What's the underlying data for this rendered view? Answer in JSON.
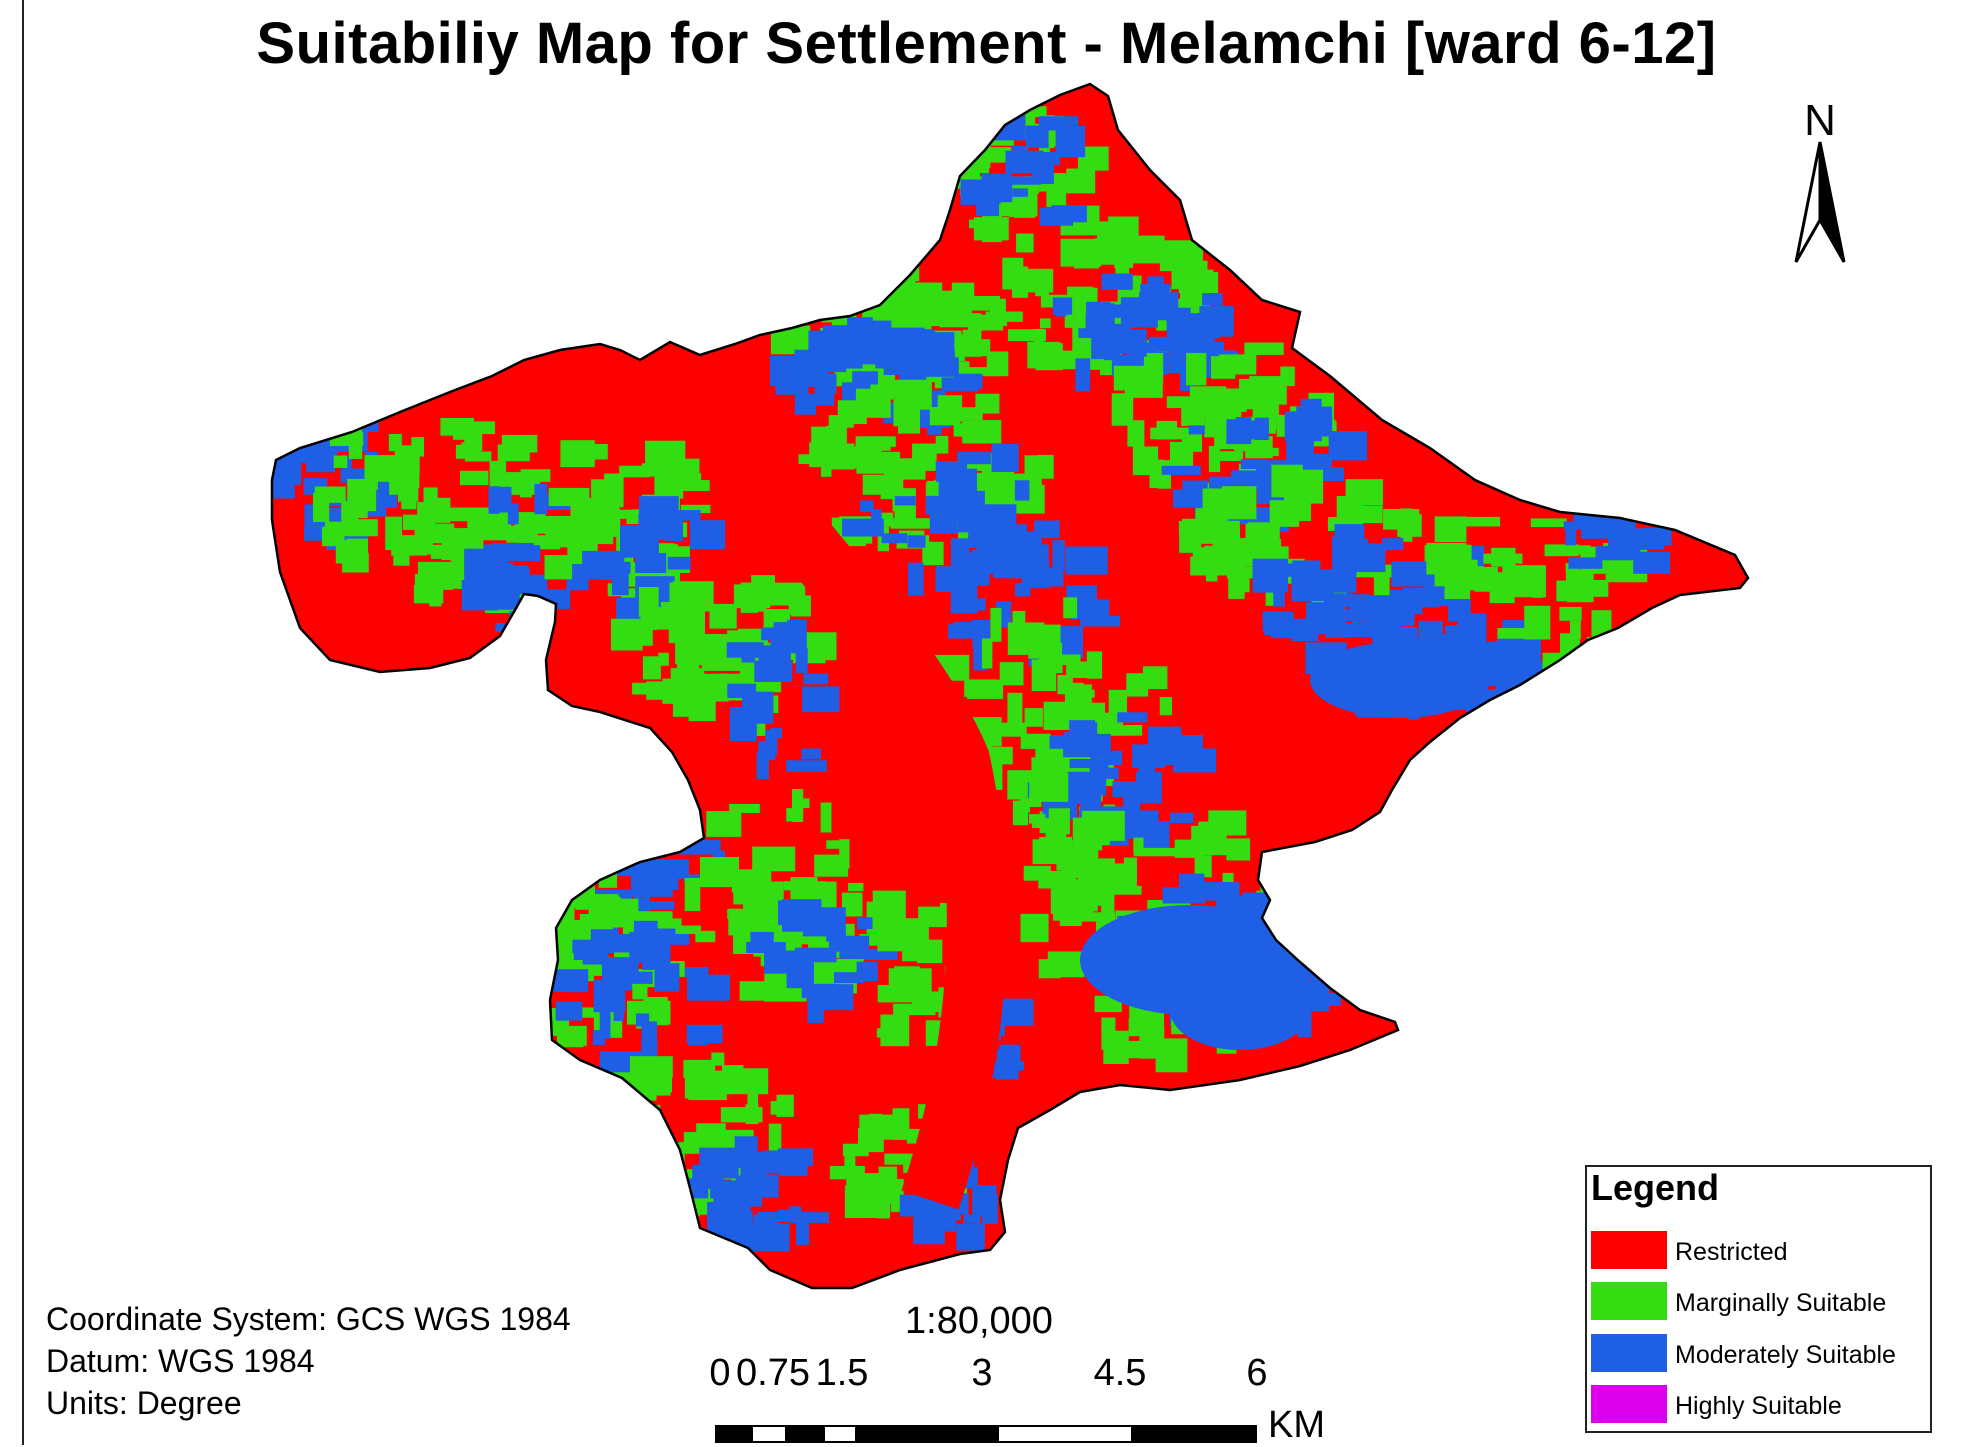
{
  "title": "Suitabiliy Map for Settlement - Melamchi [ward 6-12]",
  "north_arrow": {
    "letter": "N",
    "icon": "north-arrow-icon"
  },
  "classes": [
    {
      "label": "Restricted",
      "color": "#ff0000"
    },
    {
      "label": "Marginally Suitable",
      "color": "#33dd11"
    },
    {
      "label": "Moderately Suitable",
      "color": "#1e5fe6"
    },
    {
      "label": "Highly Suitable",
      "color": "#dd00ee"
    }
  ],
  "legend": {
    "title": "Legend"
  },
  "metadata": {
    "coordinate_system": "Coordinate System: GCS WGS 1984",
    "datum": "Datum: WGS 1984",
    "units": "Units: Degree"
  },
  "scale": {
    "ratio": "1:80,000",
    "labels": [
      "0",
      "0.75",
      "1.5",
      "3",
      "4.5",
      "6"
    ],
    "unit": "KM"
  }
}
